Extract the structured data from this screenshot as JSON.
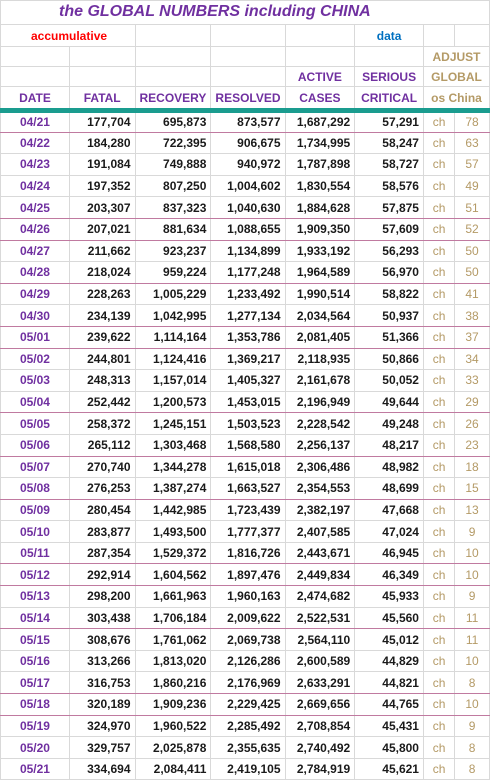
{
  "title": "the GLOBAL NUMBERS including CHINA",
  "subtitle_left": "accumulative",
  "subtitle_right": "data",
  "adjust": [
    "ADJUST",
    "GLOBAL",
    "os China"
  ],
  "headers_top": {
    "active": "ACTIVE",
    "serious": "SERIOUS"
  },
  "headers": {
    "date": "DATE",
    "fatal": "FATAL",
    "recovery": "RECOVERY",
    "resolved": "RESOLVED",
    "cases": "CASES",
    "critical": "CRITICAL"
  },
  "rows": [
    {
      "date": "04/21",
      "fatal": "177,704",
      "recovery": "695,873",
      "resolved": "873,577",
      "active": "1,687,292",
      "serious": "57,291",
      "ch": "ch",
      "adj": "78"
    },
    {
      "date": "04/22",
      "fatal": "184,280",
      "recovery": "722,395",
      "resolved": "906,675",
      "active": "1,734,995",
      "serious": "58,247",
      "ch": "ch",
      "adj": "63"
    },
    {
      "date": "04/23",
      "fatal": "191,084",
      "recovery": "749,888",
      "resolved": "940,972",
      "active": "1,787,898",
      "serious": "58,727",
      "ch": "ch",
      "adj": "57"
    },
    {
      "date": "04/24",
      "fatal": "197,352",
      "recovery": "807,250",
      "resolved": "1,004,602",
      "active": "1,830,554",
      "serious": "58,576",
      "ch": "ch",
      "adj": "49"
    },
    {
      "date": "04/25",
      "fatal": "203,307",
      "recovery": "837,323",
      "resolved": "1,040,630",
      "active": "1,884,628",
      "serious": "57,875",
      "ch": "ch",
      "adj": "51"
    },
    {
      "date": "04/26",
      "fatal": "207,021",
      "recovery": "881,634",
      "resolved": "1,088,655",
      "active": "1,909,350",
      "serious": "57,609",
      "ch": "ch",
      "adj": "52"
    },
    {
      "date": "04/27",
      "fatal": "211,662",
      "recovery": "923,237",
      "resolved": "1,134,899",
      "active": "1,933,192",
      "serious": "56,293",
      "ch": "ch",
      "adj": "50"
    },
    {
      "date": "04/28",
      "fatal": "218,024",
      "recovery": "959,224",
      "resolved": "1,177,248",
      "active": "1,964,589",
      "serious": "56,970",
      "ch": "ch",
      "adj": "50"
    },
    {
      "date": "04/29",
      "fatal": "228,263",
      "recovery": "1,005,229",
      "resolved": "1,233,492",
      "active": "1,990,514",
      "serious": "58,822",
      "ch": "ch",
      "adj": "41"
    },
    {
      "date": "04/30",
      "fatal": "234,139",
      "recovery": "1,042,995",
      "resolved": "1,277,134",
      "active": "2,034,564",
      "serious": "50,937",
      "ch": "ch",
      "adj": "38"
    },
    {
      "date": "05/01",
      "fatal": "239,622",
      "recovery": "1,114,164",
      "resolved": "1,353,786",
      "active": "2,081,405",
      "serious": "51,366",
      "ch": "ch",
      "adj": "37"
    },
    {
      "date": "05/02",
      "fatal": "244,801",
      "recovery": "1,124,416",
      "resolved": "1,369,217",
      "active": "2,118,935",
      "serious": "50,866",
      "ch": "ch",
      "adj": "34"
    },
    {
      "date": "05/03",
      "fatal": "248,313",
      "recovery": "1,157,014",
      "resolved": "1,405,327",
      "active": "2,161,678",
      "serious": "50,052",
      "ch": "ch",
      "adj": "33"
    },
    {
      "date": "05/04",
      "fatal": "252,442",
      "recovery": "1,200,573",
      "resolved": "1,453,015",
      "active": "2,196,949",
      "serious": "49,644",
      "ch": "ch",
      "adj": "29"
    },
    {
      "date": "05/05",
      "fatal": "258,372",
      "recovery": "1,245,151",
      "resolved": "1,503,523",
      "active": "2,228,542",
      "serious": "49,248",
      "ch": "ch",
      "adj": "26"
    },
    {
      "date": "05/06",
      "fatal": "265,112",
      "recovery": "1,303,468",
      "resolved": "1,568,580",
      "active": "2,256,137",
      "serious": "48,217",
      "ch": "ch",
      "adj": "23"
    },
    {
      "date": "05/07",
      "fatal": "270,740",
      "recovery": "1,344,278",
      "resolved": "1,615,018",
      "active": "2,306,486",
      "serious": "48,982",
      "ch": "ch",
      "adj": "18"
    },
    {
      "date": "05/08",
      "fatal": "276,253",
      "recovery": "1,387,274",
      "resolved": "1,663,527",
      "active": "2,354,553",
      "serious": "48,699",
      "ch": "ch",
      "adj": "15"
    },
    {
      "date": "05/09",
      "fatal": "280,454",
      "recovery": "1,442,985",
      "resolved": "1,723,439",
      "active": "2,382,197",
      "serious": "47,668",
      "ch": "ch",
      "adj": "13"
    },
    {
      "date": "05/10",
      "fatal": "283,877",
      "recovery": "1,493,500",
      "resolved": "1,777,377",
      "active": "2,407,585",
      "serious": "47,024",
      "ch": "ch",
      "adj": "9"
    },
    {
      "date": "05/11",
      "fatal": "287,354",
      "recovery": "1,529,372",
      "resolved": "1,816,726",
      "active": "2,443,671",
      "serious": "46,945",
      "ch": "ch",
      "adj": "10"
    },
    {
      "date": "05/12",
      "fatal": "292,914",
      "recovery": "1,604,562",
      "resolved": "1,897,476",
      "active": "2,449,834",
      "serious": "46,349",
      "ch": "ch",
      "adj": "10"
    },
    {
      "date": "05/13",
      "fatal": "298,200",
      "recovery": "1,661,963",
      "resolved": "1,960,163",
      "active": "2,474,682",
      "serious": "45,933",
      "ch": "ch",
      "adj": "9"
    },
    {
      "date": "05/14",
      "fatal": "303,438",
      "recovery": "1,706,184",
      "resolved": "2,009,622",
      "active": "2,522,531",
      "serious": "45,560",
      "ch": "ch",
      "adj": "11"
    },
    {
      "date": "05/15",
      "fatal": "308,676",
      "recovery": "1,761,062",
      "resolved": "2,069,738",
      "active": "2,564,110",
      "serious": "45,012",
      "ch": "ch",
      "adj": "11"
    },
    {
      "date": "05/16",
      "fatal": "313,266",
      "recovery": "1,813,020",
      "resolved": "2,126,286",
      "active": "2,600,589",
      "serious": "44,829",
      "ch": "ch",
      "adj": "10"
    },
    {
      "date": "05/17",
      "fatal": "316,753",
      "recovery": "1,860,216",
      "resolved": "2,176,969",
      "active": "2,633,291",
      "serious": "44,821",
      "ch": "ch",
      "adj": "8"
    },
    {
      "date": "05/18",
      "fatal": "320,189",
      "recovery": "1,909,236",
      "resolved": "2,229,425",
      "active": "2,669,656",
      "serious": "44,765",
      "ch": "ch",
      "adj": "10"
    },
    {
      "date": "05/19",
      "fatal": "324,970",
      "recovery": "1,960,522",
      "resolved": "2,285,492",
      "active": "2,708,854",
      "serious": "45,431",
      "ch": "ch",
      "adj": "9"
    },
    {
      "date": "05/20",
      "fatal": "329,757",
      "recovery": "2,025,878",
      "resolved": "2,355,635",
      "active": "2,740,492",
      "serious": "45,800",
      "ch": "ch",
      "adj": "8"
    },
    {
      "date": "05/21",
      "fatal": "334,694",
      "recovery": "2,084,411",
      "resolved": "2,419,105",
      "active": "2,784,919",
      "serious": "45,621",
      "ch": "ch",
      "adj": "8"
    }
  ]
}
